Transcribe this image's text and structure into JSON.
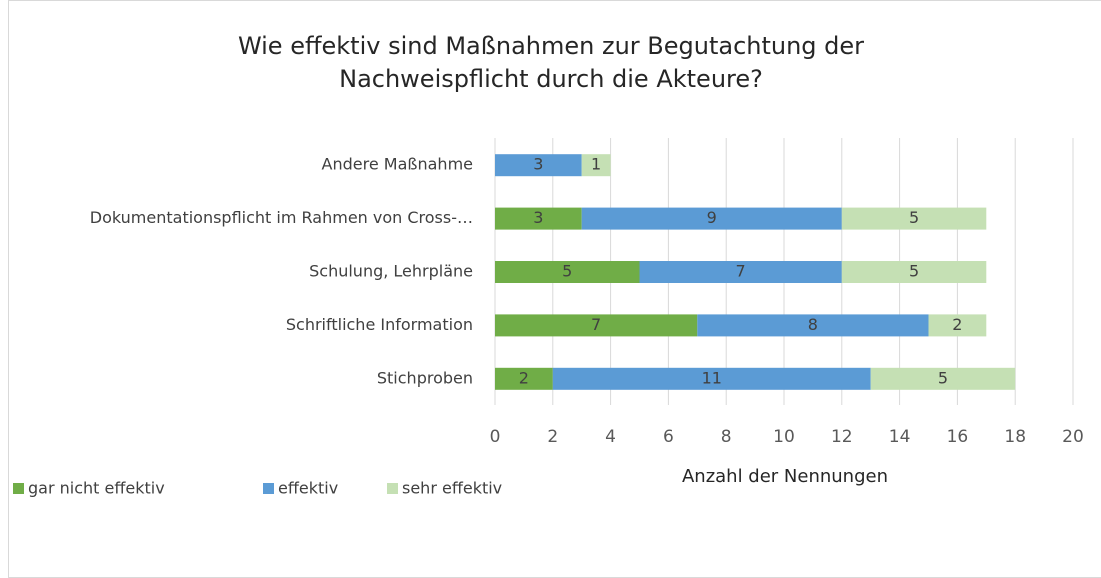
{
  "chart_data": {
    "type": "stacked-barh",
    "title": "Wie effektiv sind Maßnahmen zur Begutachtung der Nachweispflicht durch die Akteure?",
    "xlabel": "Anzahl der Nennungen",
    "categories": [
      "Andere Maßnahme",
      "Dokumentationspflicht im Rahmen von Cross-…",
      "Schulung, Lehrpläne",
      "Schriftliche Information",
      "Stichproben"
    ],
    "series": [
      {
        "name": "gar nicht effektiv",
        "color": "#70ad47",
        "values": [
          null,
          3,
          5,
          7,
          2
        ]
      },
      {
        "name": "effektiv",
        "color": "#5b9bd5",
        "values": [
          3,
          9,
          7,
          8,
          11
        ]
      },
      {
        "name": "sehr effektiv",
        "color": "#c5e0b4",
        "values": [
          1,
          5,
          5,
          2,
          5
        ]
      }
    ],
    "xlim": [
      0,
      20
    ],
    "xticks": [
      0,
      2,
      4,
      6,
      8,
      10,
      12,
      14,
      16,
      18,
      20
    ],
    "grid": true,
    "legend": "bottom-left"
  }
}
